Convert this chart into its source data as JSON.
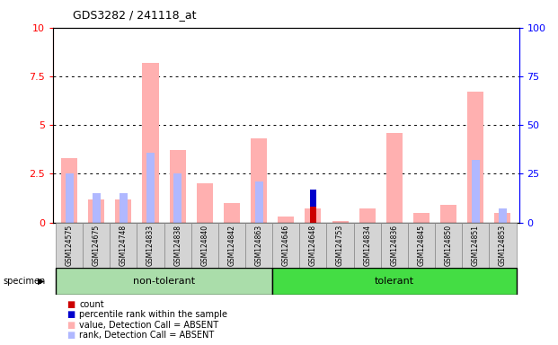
{
  "title": "GDS3282 / 241118_at",
  "samples": [
    "GSM124575",
    "GSM124675",
    "GSM124748",
    "GSM124833",
    "GSM124838",
    "GSM124840",
    "GSM124842",
    "GSM124863",
    "GSM124646",
    "GSM124648",
    "GSM124753",
    "GSM124834",
    "GSM124836",
    "GSM124845",
    "GSM124850",
    "GSM124851",
    "GSM124853"
  ],
  "non_tolerant_count": 8,
  "tolerant_count": 9,
  "value_absent": [
    3.3,
    1.2,
    1.2,
    8.2,
    3.7,
    2.0,
    1.0,
    4.3,
    0.3,
    0.7,
    0.1,
    0.7,
    4.6,
    0.5,
    0.9,
    6.7,
    0.5
  ],
  "rank_absent_pct": [
    25,
    15,
    15,
    36,
    25,
    0,
    0,
    21,
    0,
    0,
    0,
    0,
    0,
    0,
    0,
    32,
    7
  ],
  "count_val": [
    0,
    0,
    0,
    0,
    0,
    0,
    0,
    0,
    0,
    0.8,
    0,
    0,
    0,
    0,
    0,
    0,
    0
  ],
  "pct_rank_val": [
    0,
    0,
    0,
    0,
    0,
    0,
    0,
    0,
    0,
    9,
    0,
    0,
    0,
    0,
    0,
    0,
    0
  ],
  "color_value_absent": "#ffb0b0",
  "color_rank_absent": "#b0b8ff",
  "color_count": "#cc0000",
  "color_pct_rank": "#0000cc",
  "left_ylim": [
    0,
    10
  ],
  "right_ylim": [
    0,
    100
  ],
  "left_yticks": [
    0,
    2.5,
    5,
    7.5,
    10
  ],
  "right_yticks": [
    0,
    25,
    50,
    75,
    100
  ],
  "bar_width": 0.6,
  "non_tolerant_label": "non-tolerant",
  "tolerant_label": "tolerant",
  "specimen_label": "specimen",
  "legend_items": [
    "count",
    "percentile rank within the sample",
    "value, Detection Call = ABSENT",
    "rank, Detection Call = ABSENT"
  ],
  "legend_colors": [
    "#cc0000",
    "#0000cc",
    "#ffb0b0",
    "#b0b8ff"
  ]
}
